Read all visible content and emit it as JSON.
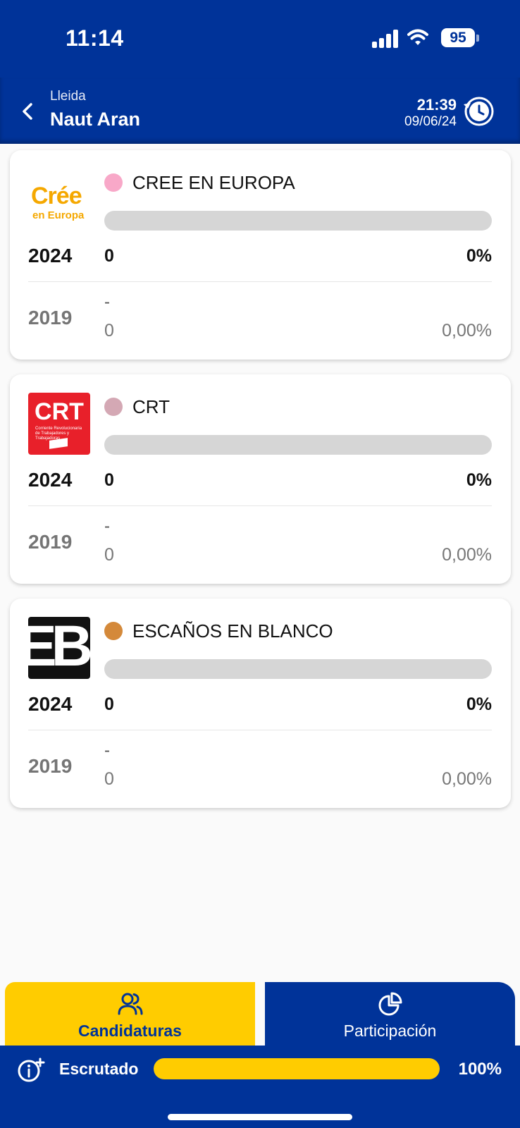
{
  "status_bar": {
    "time": "11:14",
    "battery": "95"
  },
  "header": {
    "region": "Lleida",
    "title": "Naut Aran",
    "update_time": "21:39",
    "update_date": "09/06/24"
  },
  "year_current": "2024",
  "year_previous": "2019",
  "parties": [
    {
      "name": "CREE EN EUROPA",
      "color": "#f8a8c8",
      "logo": "cree-en-europa-logo",
      "logo_text_main": "Crée",
      "logo_text_sub": "en Europa",
      "votes_2024": "0",
      "pct_2024": "0%",
      "seats_2019": "-",
      "votes_2019": "0",
      "pct_2019": "0,00%"
    },
    {
      "name": "CRT",
      "color": "#d4a8b4",
      "logo": "crt-logo",
      "logo_text_main": "CRT",
      "logo_text_sub": "Corriente Revolucionaria de Trabajadores y Trabajadoras",
      "votes_2024": "0",
      "pct_2024": "0%",
      "seats_2019": "-",
      "votes_2019": "0",
      "pct_2019": "0,00%"
    },
    {
      "name": "ESCAÑOS EN BLANCO",
      "color": "#d4893a",
      "logo": "escanos-en-blanco-logo",
      "logo_text_main": "EB",
      "votes_2024": "0",
      "pct_2024": "0%",
      "seats_2019": "-",
      "votes_2019": "0",
      "pct_2019": "0,00%"
    }
  ],
  "tabs": {
    "candidaturas": {
      "label": "Candidaturas",
      "icon": "users-icon"
    },
    "participacion": {
      "label": "Participación",
      "icon": "pie-chart-icon"
    }
  },
  "scrutiny": {
    "label": "Escrutado",
    "value": "100%",
    "progress": 1.0
  },
  "colors": {
    "primary": "#003399",
    "accent": "#ffcc00"
  }
}
